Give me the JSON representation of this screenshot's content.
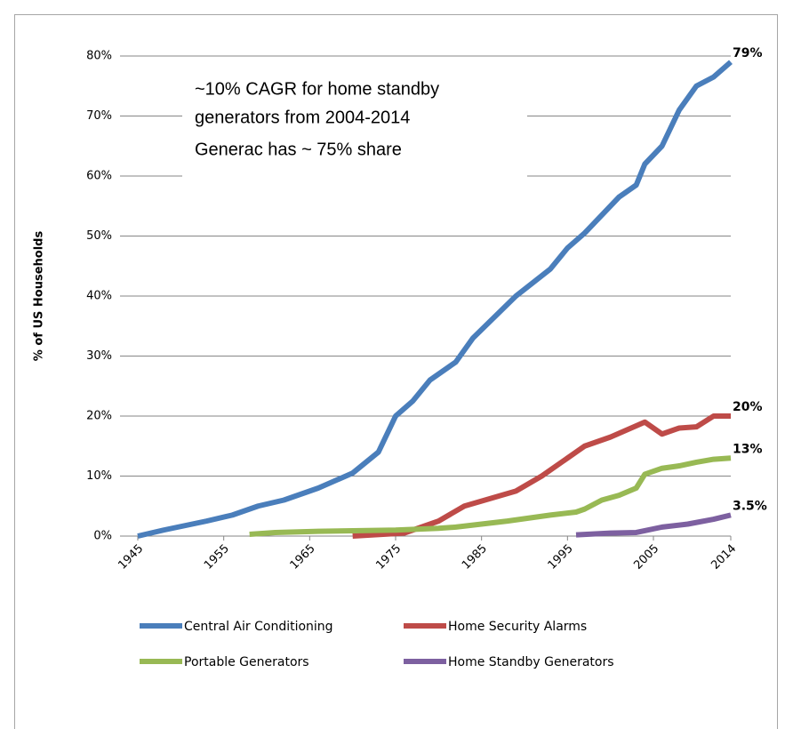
{
  "chart_data": {
    "type": "line",
    "ylabel": "% of US Households",
    "annotations": [
      {
        "lines": [
          "~10% CAGR for home standby",
          "generators from 2004-2014"
        ]
      },
      {
        "lines": [
          "Generac has ~ 75% share"
        ]
      }
    ],
    "xlim": [
      1945,
      2014
    ],
    "xticks": [
      1945,
      1955,
      1965,
      1975,
      1985,
      1995,
      2005,
      2014
    ],
    "ylim": [
      0,
      80
    ],
    "yticks": [
      {
        "value": 0,
        "label": "0%"
      },
      {
        "value": 10,
        "label": "10%"
      },
      {
        "value": 20,
        "label": "20%"
      },
      {
        "value": 30,
        "label": "30%"
      },
      {
        "value": 40,
        "label": "40%"
      },
      {
        "value": 50,
        "label": "50%"
      },
      {
        "value": 60,
        "label": "60%"
      },
      {
        "value": 70,
        "label": "70%"
      },
      {
        "value": 80,
        "label": "80%"
      }
    ],
    "grid": true,
    "legend": "bottom",
    "series": [
      {
        "name": "Central Air Conditioning",
        "color": "#4a7ebb",
        "end_label": "79%",
        "x": [
          1945,
          1948,
          1953,
          1956,
          1959,
          1962,
          1966,
          1970,
          1973,
          1975,
          1977,
          1979,
          1982,
          1984,
          1989,
          1993,
          1995,
          1997,
          2001,
          2003,
          2004,
          2006,
          2008,
          2010,
          2012,
          2014
        ],
        "values": [
          0,
          1,
          2.5,
          3.5,
          5,
          6,
          8,
          10.5,
          14,
          20,
          22.5,
          26,
          29,
          33,
          40,
          44.5,
          48,
          50.5,
          56.5,
          58.5,
          62,
          65,
          71,
          75,
          76.5,
          79
        ]
      },
      {
        "name": "Home Security Alarms",
        "color": "#be4b48",
        "end_label": "20%",
        "x": [
          1970,
          1976,
          1980,
          1983,
          1989,
          1992,
          1995,
          1997,
          2000,
          2004,
          2006,
          2008,
          2010,
          2012,
          2014
        ],
        "values": [
          0,
          0.5,
          2.5,
          5,
          7.5,
          10,
          13,
          15,
          16.5,
          19,
          17,
          18,
          18.2,
          20,
          20
        ]
      },
      {
        "name": "Portable Generators",
        "color": "#98b954",
        "end_label": "13%",
        "x": [
          1958,
          1961,
          1966,
          1975,
          1980,
          1982,
          1985,
          1988,
          1993,
          1996,
          1997,
          1999,
          2001,
          2003,
          2004,
          2006,
          2008,
          2010,
          2012,
          2014
        ],
        "values": [
          0.3,
          0.6,
          0.8,
          1,
          1.3,
          1.5,
          2,
          2.5,
          3.5,
          4,
          4.5,
          6,
          6.8,
          8,
          10.3,
          11.3,
          11.7,
          12.3,
          12.8,
          13
        ]
      },
      {
        "name": "Home Standby Generators",
        "color": "#7d60a0",
        "end_label": "3.5%",
        "x": [
          1996,
          2000,
          2003,
          2006,
          2009,
          2012,
          2014
        ],
        "values": [
          0.2,
          0.5,
          0.6,
          1.5,
          2,
          2.8,
          3.5
        ]
      }
    ]
  }
}
